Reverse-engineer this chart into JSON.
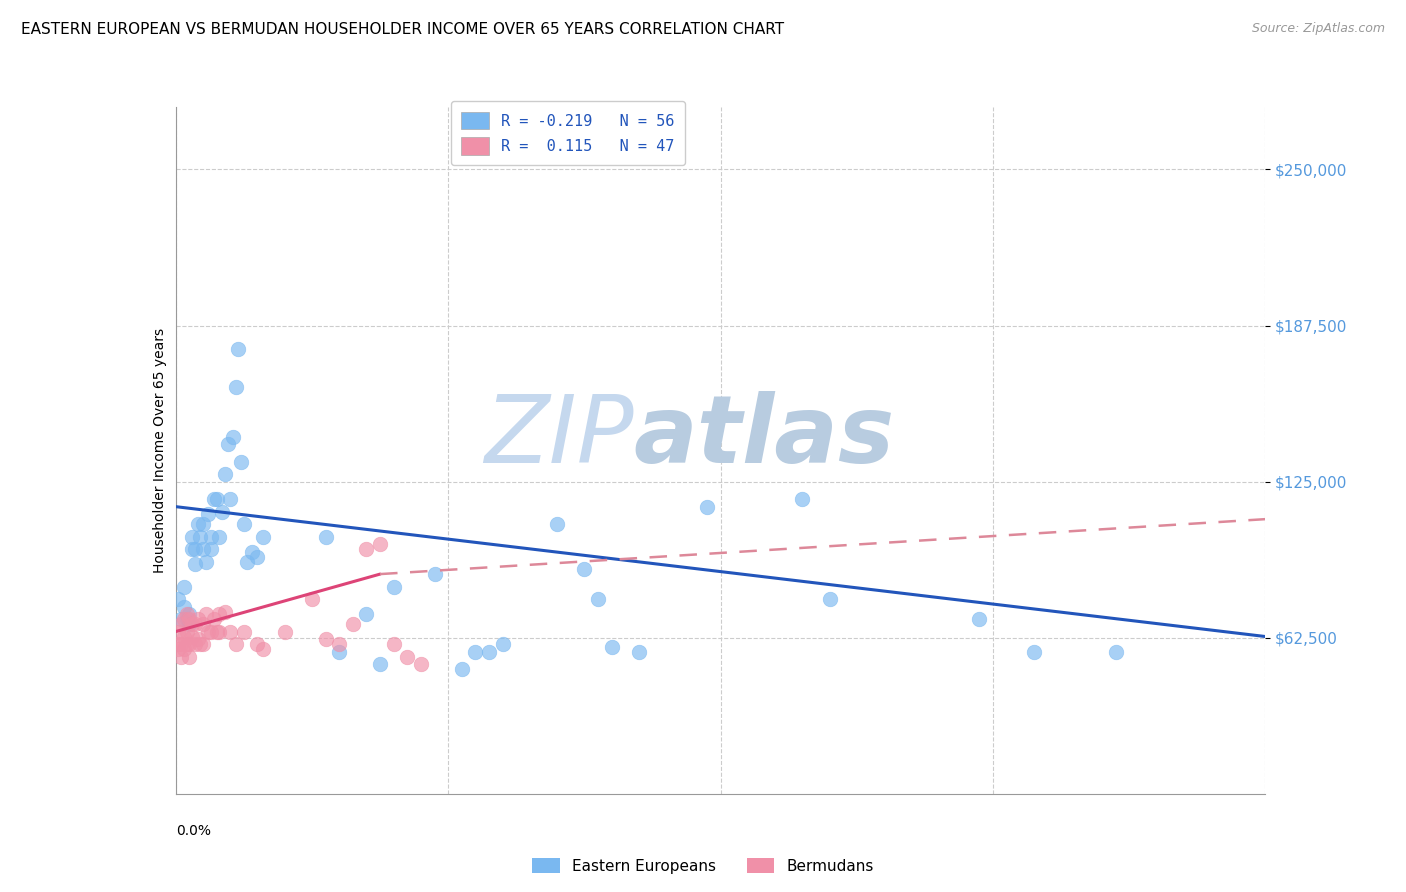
{
  "title": "EASTERN EUROPEAN VS BERMUDAN HOUSEHOLDER INCOME OVER 65 YEARS CORRELATION CHART",
  "source": "Source: ZipAtlas.com",
  "ylabel": "Householder Income Over 65 years",
  "y_ticks": [
    62500,
    125000,
    187500,
    250000
  ],
  "y_tick_labels": [
    "$62,500",
    "$125,000",
    "$187,500",
    "$250,000"
  ],
  "xlim": [
    0.0,
    0.4
  ],
  "ylim": [
    0,
    275000
  ],
  "legend_entries": [
    {
      "label": "R = -0.219   N = 56",
      "color": "#a8c8f0"
    },
    {
      "label": "R =  0.115   N = 47",
      "color": "#f0a8b8"
    }
  ],
  "watermark_zip": "ZIP",
  "watermark_atlas": "atlas",
  "blue_scatter_x": [
    0.001,
    0.002,
    0.003,
    0.003,
    0.004,
    0.005,
    0.005,
    0.006,
    0.006,
    0.007,
    0.007,
    0.008,
    0.009,
    0.01,
    0.01,
    0.011,
    0.012,
    0.013,
    0.013,
    0.014,
    0.015,
    0.016,
    0.017,
    0.018,
    0.019,
    0.02,
    0.021,
    0.022,
    0.023,
    0.024,
    0.025,
    0.026,
    0.028,
    0.03,
    0.032,
    0.055,
    0.06,
    0.07,
    0.075,
    0.08,
    0.095,
    0.105,
    0.11,
    0.115,
    0.12,
    0.14,
    0.15,
    0.155,
    0.16,
    0.17,
    0.195,
    0.23,
    0.24,
    0.295,
    0.315,
    0.345
  ],
  "blue_scatter_y": [
    78000,
    70000,
    75000,
    83000,
    70000,
    68000,
    72000,
    98000,
    103000,
    98000,
    92000,
    108000,
    103000,
    98000,
    108000,
    93000,
    112000,
    103000,
    98000,
    118000,
    118000,
    103000,
    113000,
    128000,
    140000,
    118000,
    143000,
    163000,
    178000,
    133000,
    108000,
    93000,
    97000,
    95000,
    103000,
    103000,
    57000,
    72000,
    52000,
    83000,
    88000,
    50000,
    57000,
    57000,
    60000,
    108000,
    90000,
    78000,
    59000,
    57000,
    115000,
    118000,
    78000,
    70000,
    57000,
    57000
  ],
  "pink_scatter_x": [
    0.001,
    0.001,
    0.001,
    0.002,
    0.002,
    0.002,
    0.003,
    0.003,
    0.003,
    0.004,
    0.004,
    0.004,
    0.005,
    0.005,
    0.005,
    0.006,
    0.006,
    0.007,
    0.007,
    0.008,
    0.008,
    0.009,
    0.01,
    0.01,
    0.011,
    0.012,
    0.013,
    0.014,
    0.015,
    0.016,
    0.016,
    0.018,
    0.02,
    0.022,
    0.025,
    0.03,
    0.032,
    0.04,
    0.05,
    0.055,
    0.06,
    0.065,
    0.07,
    0.075,
    0.08,
    0.085,
    0.09
  ],
  "pink_scatter_y": [
    65000,
    60000,
    58000,
    68000,
    60000,
    55000,
    70000,
    63000,
    58000,
    72000,
    65000,
    60000,
    70000,
    60000,
    55000,
    68000,
    63000,
    68000,
    60000,
    70000,
    62000,
    60000,
    68000,
    60000,
    72000,
    65000,
    65000,
    70000,
    65000,
    72000,
    65000,
    73000,
    65000,
    60000,
    65000,
    60000,
    58000,
    65000,
    78000,
    62000,
    60000,
    68000,
    98000,
    100000,
    60000,
    55000,
    52000
  ],
  "blue_line_x": [
    0.0,
    0.4
  ],
  "blue_line_y": [
    115000,
    63000
  ],
  "pink_solid_line_x": [
    0.0,
    0.075
  ],
  "pink_solid_line_y": [
    65000,
    88000
  ],
  "pink_dashed_line_x": [
    0.075,
    0.4
  ],
  "pink_dashed_line_y": [
    88000,
    110000
  ],
  "scatter_size": 110,
  "blue_color": "#7ab8f0",
  "pink_color": "#f090a8",
  "blue_line_color": "#2255bb",
  "pink_line_color": "#dd4477",
  "pink_dashed_color": "#dd8899",
  "grid_color": "#cccccc",
  "background_color": "#ffffff",
  "title_fontsize": 11,
  "axis_label_fontsize": 10,
  "tick_label_color": "#5599dd",
  "watermark_zip_color": "#c5d8ee",
  "watermark_atlas_color": "#b8cce0",
  "watermark_fontsize": 68
}
